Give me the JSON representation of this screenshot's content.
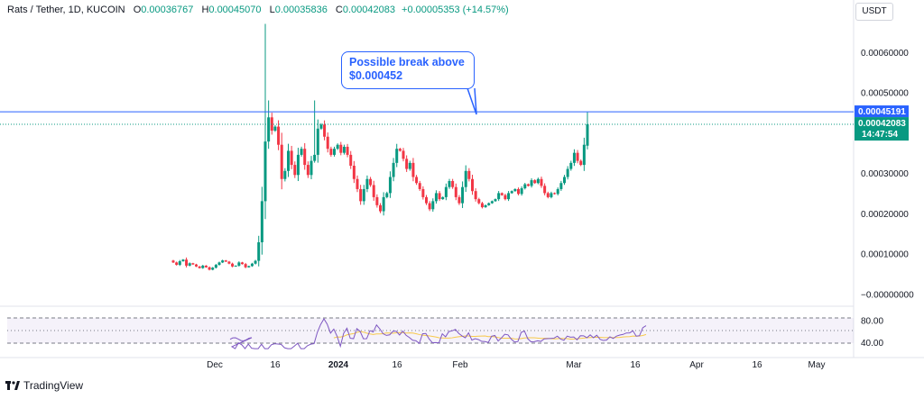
{
  "header": {
    "symbol": "Rats / Tether, 1D, KUCOIN",
    "open_label": "O",
    "open": "0.00036767",
    "high_label": "H",
    "high": "0.00045070",
    "low_label": "L",
    "low": "0.00035836",
    "close_label": "C",
    "close": "0.00042083",
    "change": "+0.00005353 (+14.57%)"
  },
  "currency_button": "USDT",
  "callout": {
    "line1": "Possible break above",
    "line2": "$0.000452"
  },
  "price_tags": {
    "resistance": "0.00045191",
    "last_price": "0.00042083",
    "countdown": "14:47:54"
  },
  "y_axis_labels": [
    "0.00060000",
    "0.00050000",
    "0.00030000",
    "0.00020000",
    "0.00010000",
    "−0.00000000"
  ],
  "rsi_axis_labels": [
    "80.00",
    "40.00"
  ],
  "x_axis_labels": [
    "Dec",
    "16",
    "2024",
    "16",
    "Feb",
    "Mar",
    "16",
    "Apr",
    "16",
    "May"
  ],
  "footer": {
    "brand": "TradingView"
  },
  "colors": {
    "up": "#089981",
    "down": "#f23645",
    "line": "#2962ff",
    "rsi": "#7e57c2",
    "rsi_ma": "#f7c94b"
  },
  "chart_data": {
    "type": "candlestick",
    "ohlc_last": {
      "open": 0.00036767,
      "high": 0.0004507,
      "low": 0.00035836,
      "close": 0.00042083
    },
    "resistance_level": 0.00045191,
    "last_price": 0.00042083,
    "closes": [
      7.8e-05,
      7.2e-05,
      8.1e-05,
      8.5e-05,
      7e-05,
      7.6e-05,
      7.3e-05,
      6.8e-05,
      6.4e-05,
      7e-05,
      6.6e-05,
      6e-05,
      6.5e-05,
      7.2e-05,
      7.8e-05,
      8.3e-05,
      8e-05,
      7.5e-05,
      6.8e-05,
      7e-05,
      7.8e-05,
      7.4e-05,
      6.6e-05,
      6.9e-05,
      7.5e-05,
      8.2e-05,
      0.000128,
      0.00023,
      0.000378,
      0.000438,
      0.000405,
      0.000415,
      0.00037,
      0.000285,
      0.000305,
      0.000355,
      0.00032,
      0.000295,
      0.000345,
      0.00036,
      0.00032,
      0.000295,
      0.00033,
      0.000345,
      0.00041,
      0.00042,
      0.00039,
      0.00036,
      0.000345,
      0.00036,
      0.00037,
      0.00035,
      0.000365,
      0.000345,
      0.000318,
      0.000285,
      0.00026,
      0.00023,
      0.00026,
      0.000285,
      0.00027,
      0.00024,
      0.00022,
      0.000205,
      0.00024,
      0.00025,
      0.00029,
      0.000325,
      0.00036,
      0.000355,
      0.000335,
      0.00031,
      0.000325,
      0.00029,
      0.000275,
      0.00026,
      0.00024,
      0.000225,
      0.00021,
      0.00023,
      0.00025,
      0.000235,
      0.00024,
      0.000265,
      0.00028,
      0.000265,
      0.00024,
      0.000225,
      0.000265,
      0.000305,
      0.000285,
      0.000255,
      0.000235,
      0.000225,
      0.000215,
      0.00022,
      0.000225,
      0.00023,
      0.000235,
      0.00025,
      0.000245,
      0.000235,
      0.00025,
      0.000255,
      0.00026,
      0.000248,
      0.000262,
      0.000272,
      0.000268,
      0.000282,
      0.000275,
      0.000285,
      0.000268,
      0.00025,
      0.00024,
      0.00025,
      0.000248,
      0.00026,
      0.000275,
      0.00029,
      0.00031,
      0.000325,
      0.00035,
      0.00033,
      0.00032,
      0.00037,
      0.00042083
    ],
    "y_range": [
      -1.5e-05,
      0.00068
    ],
    "x_ticks": [
      "Dec",
      "16",
      "2024",
      "16",
      "Feb",
      "Mar",
      "16",
      "Apr",
      "16",
      "May"
    ],
    "rsi_range": [
      20,
      100
    ],
    "rsi_bands": [
      70,
      30
    ],
    "rsi_axis": [
      80,
      40
    ]
  }
}
